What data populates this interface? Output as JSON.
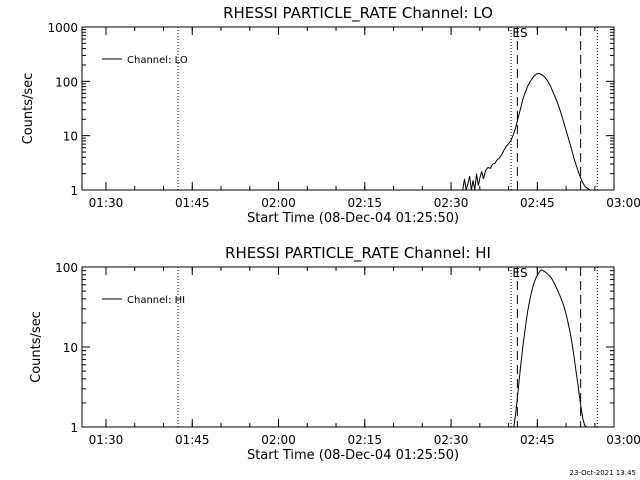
{
  "footer": {
    "timestamp": "23-Oct-2021 13:45"
  },
  "colors": {
    "foreground": "#000000",
    "background": "#ffffff"
  },
  "chart_data": [
    {
      "type": "line",
      "title": "RHESSI PARTICLE_RATE Channel: LO",
      "xlabel": "Start Time (08-Dec-04 01:25:50)",
      "ylabel": "Counts/sec",
      "yscale": "log",
      "ylim": [
        1,
        1000
      ],
      "xlim_minutes": [
        0,
        92.5
      ],
      "x_tick_labels": [
        "01:30",
        "01:45",
        "02:00",
        "02:15",
        "02:30",
        "02:45",
        "03:00"
      ],
      "x_tick_minutes": [
        4.17,
        19.17,
        34.17,
        49.17,
        64.17,
        79.17,
        94.17
      ],
      "y_tick_labels": [
        "1",
        "10",
        "100",
        "1000"
      ],
      "y_tick_values": [
        1,
        10,
        100,
        1000
      ],
      "legend": {
        "position": "top-left",
        "entries": [
          "Channel: LO"
        ]
      },
      "markers": [
        {
          "type": "dotted",
          "x": 16.7,
          "label": ""
        },
        {
          "type": "dotted",
          "x": 74.6,
          "label": ""
        },
        {
          "type": "dashed",
          "x": 75.7,
          "label": "ES"
        },
        {
          "type": "dashed",
          "x": 86.7,
          "label": ""
        },
        {
          "type": "dotted",
          "x": 89.6,
          "label": ""
        }
      ],
      "series": [
        {
          "name": "Channel: LO",
          "x": [
            66.2,
            66.5,
            66.8,
            67.1,
            67.4,
            67.7,
            68.0,
            68.3,
            68.6,
            68.9,
            69.2,
            69.5,
            69.8,
            70.2,
            70.6,
            71.0,
            71.4,
            71.8,
            72.2,
            72.6,
            73.0,
            73.4,
            73.8,
            74.2,
            74.6,
            75.0,
            75.4,
            75.8,
            76.2,
            76.6,
            77.0,
            77.5,
            78.0,
            78.5,
            79.0,
            79.5,
            80.0,
            80.5,
            81.0,
            81.5,
            82.0,
            82.5,
            83.0,
            83.5,
            84.0,
            84.5,
            85.0,
            85.5,
            86.0,
            86.5,
            87.0,
            87.5,
            88.0,
            88.4,
            88.8
          ],
          "y": [
            1,
            1.6,
            1,
            1.3,
            1.8,
            1,
            1.5,
            1,
            2,
            1.2,
            1.7,
            2.2,
            1.6,
            2.3,
            2.6,
            2.5,
            3,
            3.1,
            3.6,
            3.9,
            4.5,
            5.5,
            6.4,
            7.2,
            8.2,
            10.5,
            14,
            21,
            30,
            45,
            60,
            82,
            102,
            122,
            136,
            140,
            132,
            118,
            100,
            80,
            60,
            45,
            32,
            22,
            14.5,
            9.5,
            6.2,
            4,
            2.7,
            1.9,
            1.4,
            1.15,
            1.05,
            1,
            1
          ]
        }
      ]
    },
    {
      "type": "line",
      "title": "RHESSI PARTICLE_RATE Channel: HI",
      "xlabel": "Start Time (08-Dec-04 01:25:50)",
      "ylabel": "Counts/sec",
      "yscale": "log",
      "ylim": [
        1,
        100
      ],
      "xlim_minutes": [
        0,
        92.5
      ],
      "x_tick_labels": [
        "01:30",
        "01:45",
        "02:00",
        "02:15",
        "02:30",
        "02:45",
        "03:00"
      ],
      "x_tick_minutes": [
        4.17,
        19.17,
        34.17,
        49.17,
        64.17,
        79.17,
        94.17
      ],
      "y_tick_labels": [
        "1",
        "10",
        "100"
      ],
      "y_tick_values": [
        1,
        10,
        100
      ],
      "legend": {
        "position": "top-left",
        "entries": [
          "Channel: HI"
        ]
      },
      "markers": [
        {
          "type": "dotted",
          "x": 16.7,
          "label": ""
        },
        {
          "type": "dotted",
          "x": 74.6,
          "label": ""
        },
        {
          "type": "dashed",
          "x": 75.7,
          "label": "ES"
        },
        {
          "type": "dashed",
          "x": 86.7,
          "label": ""
        },
        {
          "type": "dotted",
          "x": 89.6,
          "label": ""
        }
      ],
      "series": [
        {
          "name": "Channel: HI",
          "x": [
            75.1,
            75.4,
            75.7,
            76.0,
            76.3,
            76.6,
            76.9,
            77.2,
            77.5,
            77.8,
            78.1,
            78.4,
            78.7,
            79.0,
            79.3,
            79.6,
            79.9,
            80.2,
            80.5,
            80.8,
            81.1,
            81.4,
            81.7,
            82.0,
            82.3,
            82.6,
            82.9,
            83.2,
            83.5,
            83.8,
            84.1,
            84.4,
            84.7,
            85.0,
            85.3,
            85.6,
            85.9,
            86.2,
            86.5,
            86.8,
            87.1,
            87.4,
            87.7
          ],
          "y": [
            1,
            1.5,
            2.3,
            3.8,
            6,
            9.5,
            14,
            20,
            28,
            37,
            47,
            57,
            66,
            75,
            82,
            88,
            92,
            90,
            87,
            84,
            80,
            76,
            71,
            65,
            59,
            53,
            47,
            42,
            37,
            32,
            27,
            22,
            17.5,
            13.5,
            10,
            7.2,
            5,
            3.5,
            2.4,
            1.7,
            1.25,
            1.05,
            1
          ]
        }
      ]
    }
  ]
}
